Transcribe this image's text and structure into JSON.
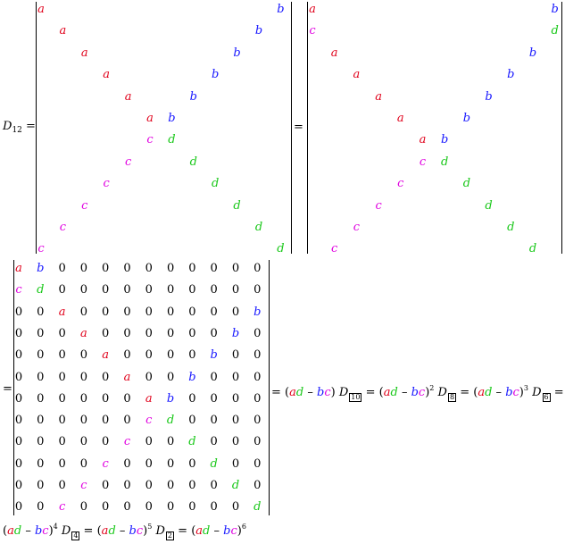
{
  "lhs": {
    "symbol": "D",
    "subscript": "12"
  },
  "equals": "=",
  "minus": "–",
  "letters": {
    "a": "a",
    "b": "b",
    "c": "c",
    "d": "d",
    "zero": "0"
  },
  "colors": {
    "a": "#e0001a",
    "b": "#1a1aff",
    "c": "#e000e0",
    "d": "#1ac81a"
  },
  "matrix1_rows": [
    [
      "a",
      "0",
      "0",
      "0",
      "0",
      "0",
      "0",
      "0",
      "0",
      "0",
      "0",
      "b"
    ],
    [
      "0",
      "a",
      "0",
      "0",
      "0",
      "0",
      "0",
      "0",
      "0",
      "0",
      "b",
      "0"
    ],
    [
      "0",
      "0",
      "a",
      "0",
      "0",
      "0",
      "0",
      "0",
      "0",
      "b",
      "0",
      "0"
    ],
    [
      "0",
      "0",
      "0",
      "a",
      "0",
      "0",
      "0",
      "0",
      "b",
      "0",
      "0",
      "0"
    ],
    [
      "0",
      "0",
      "0",
      "0",
      "a",
      "0",
      "0",
      "b",
      "0",
      "0",
      "0",
      "0"
    ],
    [
      "0",
      "0",
      "0",
      "0",
      "0",
      "a",
      "b",
      "0",
      "0",
      "0",
      "0",
      "0"
    ],
    [
      "0",
      "0",
      "0",
      "0",
      "0",
      "c",
      "d",
      "0",
      "0",
      "0",
      "0",
      "0"
    ],
    [
      "0",
      "0",
      "0",
      "0",
      "c",
      "0",
      "0",
      "d",
      "0",
      "0",
      "0",
      "0"
    ],
    [
      "0",
      "0",
      "0",
      "c",
      "0",
      "0",
      "0",
      "0",
      "d",
      "0",
      "0",
      "0"
    ],
    [
      "0",
      "0",
      "c",
      "0",
      "0",
      "0",
      "0",
      "0",
      "0",
      "d",
      "0",
      "0"
    ],
    [
      "0",
      "c",
      "0",
      "0",
      "0",
      "0",
      "0",
      "0",
      "0",
      "0",
      "d",
      "0"
    ],
    [
      "c",
      "0",
      "0",
      "0",
      "0",
      "0",
      "0",
      "0",
      "0",
      "0",
      "0",
      "d"
    ]
  ],
  "matrix2_rows": [
    [
      "a",
      "0",
      "0",
      "0",
      "0",
      "0",
      "0",
      "0",
      "0",
      "0",
      "0",
      "b"
    ],
    [
      "c",
      "0",
      "0",
      "0",
      "0",
      "0",
      "0",
      "0",
      "0",
      "0",
      "0",
      "d"
    ],
    [
      "0",
      "a",
      "0",
      "0",
      "0",
      "0",
      "0",
      "0",
      "0",
      "0",
      "b",
      "0"
    ],
    [
      "0",
      "0",
      "a",
      "0",
      "0",
      "0",
      "0",
      "0",
      "0",
      "b",
      "0",
      "0"
    ],
    [
      "0",
      "0",
      "0",
      "a",
      "0",
      "0",
      "0",
      "0",
      "b",
      "0",
      "0",
      "0"
    ],
    [
      "0",
      "0",
      "0",
      "0",
      "a",
      "0",
      "0",
      "b",
      "0",
      "0",
      "0",
      "0"
    ],
    [
      "0",
      "0",
      "0",
      "0",
      "0",
      "a",
      "b",
      "0",
      "0",
      "0",
      "0",
      "0"
    ],
    [
      "0",
      "0",
      "0",
      "0",
      "0",
      "c",
      "d",
      "0",
      "0",
      "0",
      "0",
      "0"
    ],
    [
      "0",
      "0",
      "0",
      "0",
      "c",
      "0",
      "0",
      "d",
      "0",
      "0",
      "0",
      "0"
    ],
    [
      "0",
      "0",
      "0",
      "c",
      "0",
      "0",
      "0",
      "0",
      "d",
      "0",
      "0",
      "0"
    ],
    [
      "0",
      "0",
      "c",
      "0",
      "0",
      "0",
      "0",
      "0",
      "0",
      "d",
      "0",
      "0"
    ],
    [
      "0",
      "c",
      "0",
      "0",
      "0",
      "0",
      "0",
      "0",
      "0",
      "0",
      "d",
      "0"
    ]
  ],
  "matrix3_rows": [
    [
      "a",
      "b",
      "0",
      "0",
      "0",
      "0",
      "0",
      "0",
      "0",
      "0",
      "0",
      "0"
    ],
    [
      "c",
      "d",
      "0",
      "0",
      "0",
      "0",
      "0",
      "0",
      "0",
      "0",
      "0",
      "0"
    ],
    [
      "0",
      "0",
      "a",
      "0",
      "0",
      "0",
      "0",
      "0",
      "0",
      "0",
      "0",
      "b"
    ],
    [
      "0",
      "0",
      "0",
      "a",
      "0",
      "0",
      "0",
      "0",
      "0",
      "0",
      "b",
      "0"
    ],
    [
      "0",
      "0",
      "0",
      "0",
      "a",
      "0",
      "0",
      "0",
      "0",
      "b",
      "0",
      "0"
    ],
    [
      "0",
      "0",
      "0",
      "0",
      "0",
      "a",
      "0",
      "0",
      "b",
      "0",
      "0",
      "0"
    ],
    [
      "0",
      "0",
      "0",
      "0",
      "0",
      "0",
      "a",
      "b",
      "0",
      "0",
      "0",
      "0"
    ],
    [
      "0",
      "0",
      "0",
      "0",
      "0",
      "0",
      "c",
      "d",
      "0",
      "0",
      "0",
      "0"
    ],
    [
      "0",
      "0",
      "0",
      "0",
      "0",
      "c",
      "0",
      "0",
      "d",
      "0",
      "0",
      "0"
    ],
    [
      "0",
      "0",
      "0",
      "0",
      "c",
      "0",
      "0",
      "0",
      "0",
      "d",
      "0",
      "0"
    ],
    [
      "0",
      "0",
      "0",
      "c",
      "0",
      "0",
      "0",
      "0",
      "0",
      "0",
      "d",
      "0"
    ],
    [
      "0",
      "0",
      "c",
      "0",
      "0",
      "0",
      "0",
      "0",
      "0",
      "0",
      "0",
      "d"
    ]
  ],
  "step_line1": [
    {
      "power": "",
      "D_sub": "10"
    },
    {
      "power": "2",
      "D_sub": "8"
    },
    {
      "power": "3",
      "D_sub": "6"
    }
  ],
  "step_line2": [
    {
      "power": "4",
      "D_sub": "4"
    },
    {
      "power": "5",
      "D_sub": "2"
    }
  ],
  "final_power": "6"
}
